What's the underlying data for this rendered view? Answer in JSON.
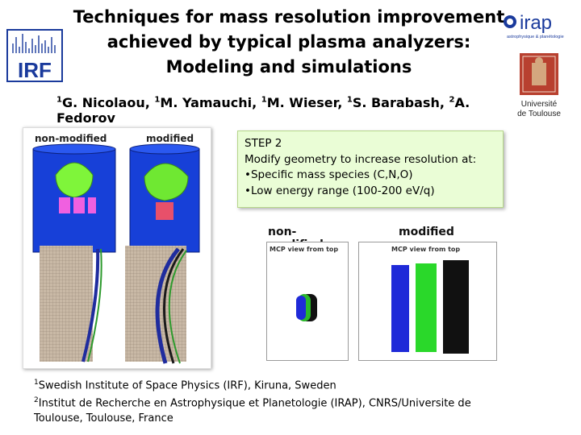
{
  "title": {
    "line1": "Techniques for mass resolution improvement",
    "line2": "achieved by typical plasma analyzers:",
    "line3": "Modeling and simulations"
  },
  "authors": [
    {
      "sup": "1",
      "name": "G. Nicolaou, "
    },
    {
      "sup": "1",
      "name": "M. Yamauchi, "
    },
    {
      "sup": "1",
      "name": "M. Wieser, "
    },
    {
      "sup": "1",
      "name": "S. Barabash, "
    },
    {
      "sup": "2",
      "name": "A. Fedorov"
    }
  ],
  "logos": {
    "irf": "IRF",
    "irap": "irap",
    "irap_tagline": "astrophysique & planétologie",
    "toulouse_line1": "Université",
    "toulouse_line2": "de Toulouse"
  },
  "left_figure": {
    "label_left": "non-modified",
    "label_right": "modified"
  },
  "step_box": {
    "heading": "STEP 2",
    "line": "Modify geometry to increase resolution at:",
    "bullets": [
      "•Specific mass species (C,N,O)",
      "•Low energy range (100-200 eV/q)"
    ]
  },
  "mcp_figure": {
    "left_header": "non-modified",
    "right_header": "modified",
    "left_sub": "MCP view from top",
    "right_sub": "MCP view from top"
  },
  "footnotes": [
    {
      "sup": "1",
      "text": "Swedish Institute of Space Physics (IRF), Kiruna, Sweden"
    },
    {
      "sup": "2",
      "text": "Institut de Recherche en Astrophysique et Planetologie (IRAP), CNRS/Universite de"
    },
    {
      "sup": "",
      "text": "Toulouse, Toulouse, France"
    }
  ],
  "colors": {
    "step_box_bg": "#eafdd6",
    "irf_blue": "#1a3a9c",
    "instrument_blue": "#1740d8",
    "green": "#3bd13b"
  }
}
